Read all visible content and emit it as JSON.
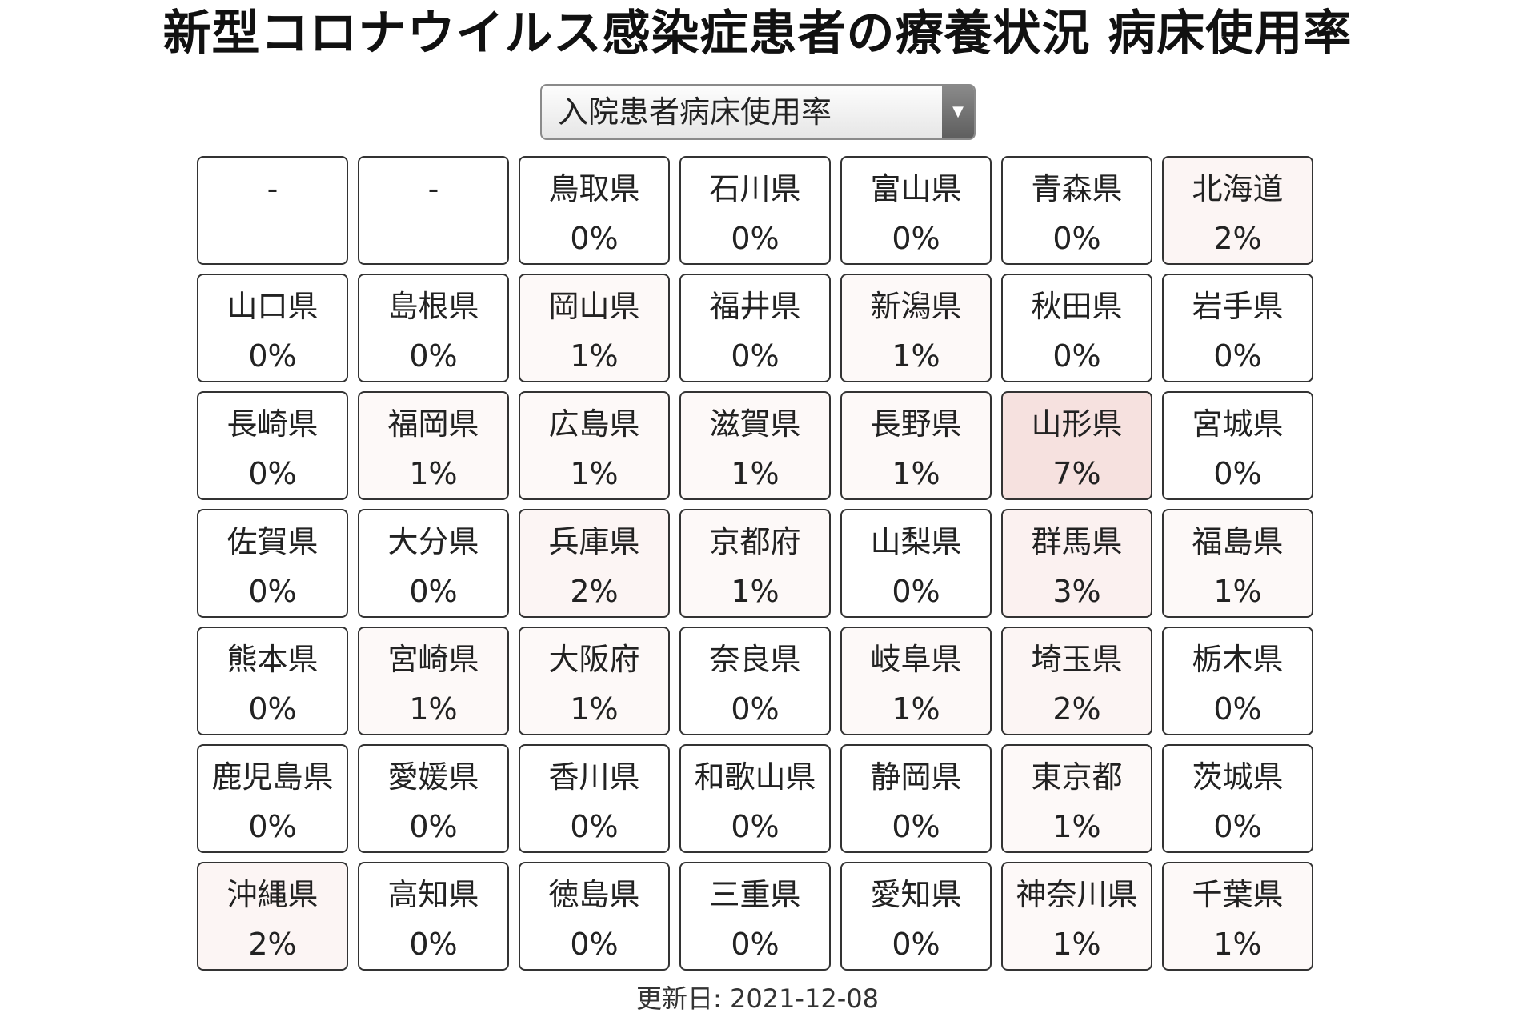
{
  "header": {
    "title": "新型コロナウイルス感染症患者の療養状況 病床使用率"
  },
  "selector": {
    "selected": "入院患者病床使用率",
    "arrow_glyph": "▼"
  },
  "grid": {
    "cells": [
      {
        "name": "-",
        "value": "",
        "rate": 0
      },
      {
        "name": "-",
        "value": "",
        "rate": 0
      },
      {
        "name": "鳥取県",
        "value": "0%",
        "rate": 0
      },
      {
        "name": "石川県",
        "value": "0%",
        "rate": 0
      },
      {
        "name": "富山県",
        "value": "0%",
        "rate": 0
      },
      {
        "name": "青森県",
        "value": "0%",
        "rate": 0
      },
      {
        "name": "北海道",
        "value": "2%",
        "rate": 2
      },
      {
        "name": "山口県",
        "value": "0%",
        "rate": 0
      },
      {
        "name": "島根県",
        "value": "0%",
        "rate": 0
      },
      {
        "name": "岡山県",
        "value": "1%",
        "rate": 1
      },
      {
        "name": "福井県",
        "value": "0%",
        "rate": 0
      },
      {
        "name": "新潟県",
        "value": "1%",
        "rate": 1
      },
      {
        "name": "秋田県",
        "value": "0%",
        "rate": 0
      },
      {
        "name": "岩手県",
        "value": "0%",
        "rate": 0
      },
      {
        "name": "長崎県",
        "value": "0%",
        "rate": 0
      },
      {
        "name": "福岡県",
        "value": "1%",
        "rate": 1
      },
      {
        "name": "広島県",
        "value": "1%",
        "rate": 1
      },
      {
        "name": "滋賀県",
        "value": "1%",
        "rate": 1
      },
      {
        "name": "長野県",
        "value": "1%",
        "rate": 1
      },
      {
        "name": "山形県",
        "value": "7%",
        "rate": 7
      },
      {
        "name": "宮城県",
        "value": "0%",
        "rate": 0
      },
      {
        "name": "佐賀県",
        "value": "0%",
        "rate": 0
      },
      {
        "name": "大分県",
        "value": "0%",
        "rate": 0
      },
      {
        "name": "兵庫県",
        "value": "2%",
        "rate": 2
      },
      {
        "name": "京都府",
        "value": "1%",
        "rate": 1
      },
      {
        "name": "山梨県",
        "value": "0%",
        "rate": 0
      },
      {
        "name": "群馬県",
        "value": "3%",
        "rate": 3
      },
      {
        "name": "福島県",
        "value": "1%",
        "rate": 1
      },
      {
        "name": "熊本県",
        "value": "0%",
        "rate": 0
      },
      {
        "name": "宮崎県",
        "value": "1%",
        "rate": 1
      },
      {
        "name": "大阪府",
        "value": "1%",
        "rate": 1
      },
      {
        "name": "奈良県",
        "value": "0%",
        "rate": 0
      },
      {
        "name": "岐阜県",
        "value": "1%",
        "rate": 1
      },
      {
        "name": "埼玉県",
        "value": "2%",
        "rate": 2
      },
      {
        "name": "栃木県",
        "value": "0%",
        "rate": 0
      },
      {
        "name": "鹿児島県",
        "value": "0%",
        "rate": 0
      },
      {
        "name": "愛媛県",
        "value": "0%",
        "rate": 0
      },
      {
        "name": "香川県",
        "value": "0%",
        "rate": 0
      },
      {
        "name": "和歌山県",
        "value": "0%",
        "rate": 0
      },
      {
        "name": "静岡県",
        "value": "0%",
        "rate": 0
      },
      {
        "name": "東京都",
        "value": "1%",
        "rate": 1
      },
      {
        "name": "茨城県",
        "value": "0%",
        "rate": 0
      },
      {
        "name": "沖縄県",
        "value": "2%",
        "rate": 2
      },
      {
        "name": "高知県",
        "value": "0%",
        "rate": 0
      },
      {
        "name": "徳島県",
        "value": "0%",
        "rate": 0
      },
      {
        "name": "三重県",
        "value": "0%",
        "rate": 0
      },
      {
        "name": "愛知県",
        "value": "0%",
        "rate": 0
      },
      {
        "name": "神奈川県",
        "value": "1%",
        "rate": 1
      },
      {
        "name": "千葉県",
        "value": "1%",
        "rate": 1
      }
    ]
  },
  "colors": {
    "heat_base": "#ffffff",
    "heat_tint": "#c0392b",
    "border": "#333333"
  },
  "footer": {
    "updated": "更新日: 2021-12-08"
  }
}
